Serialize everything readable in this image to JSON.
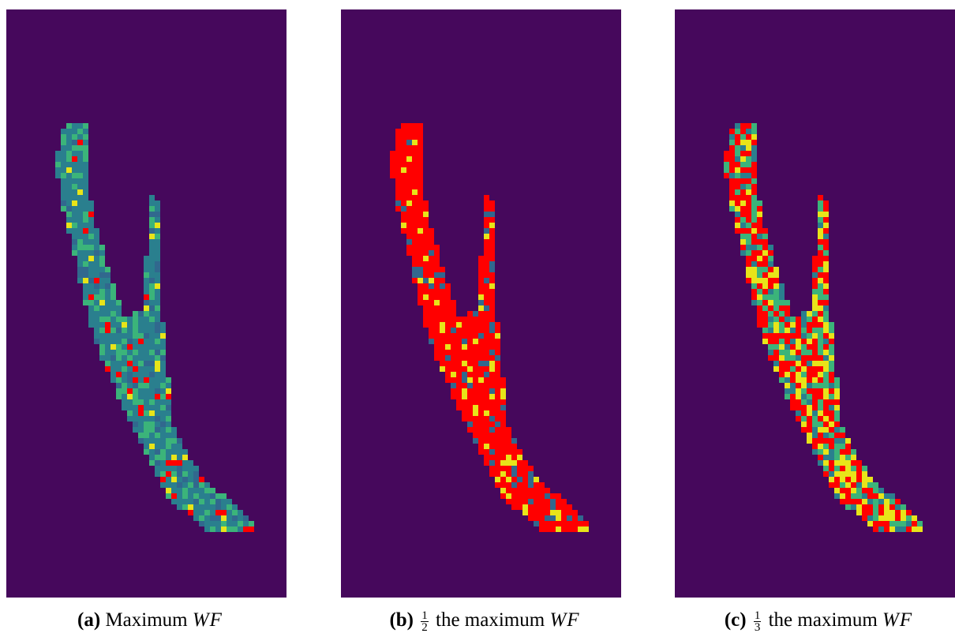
{
  "figures": [
    {
      "label": "(a)",
      "text": "Maximum",
      "math": "WF"
    },
    {
      "label": "(b)",
      "numerator": "1",
      "denominator": "2",
      "text": "the maximum",
      "math": "WF"
    },
    {
      "label": "(c)",
      "numerator": "1",
      "denominator": "3",
      "text": "the maximum",
      "math": "WF"
    }
  ]
}
